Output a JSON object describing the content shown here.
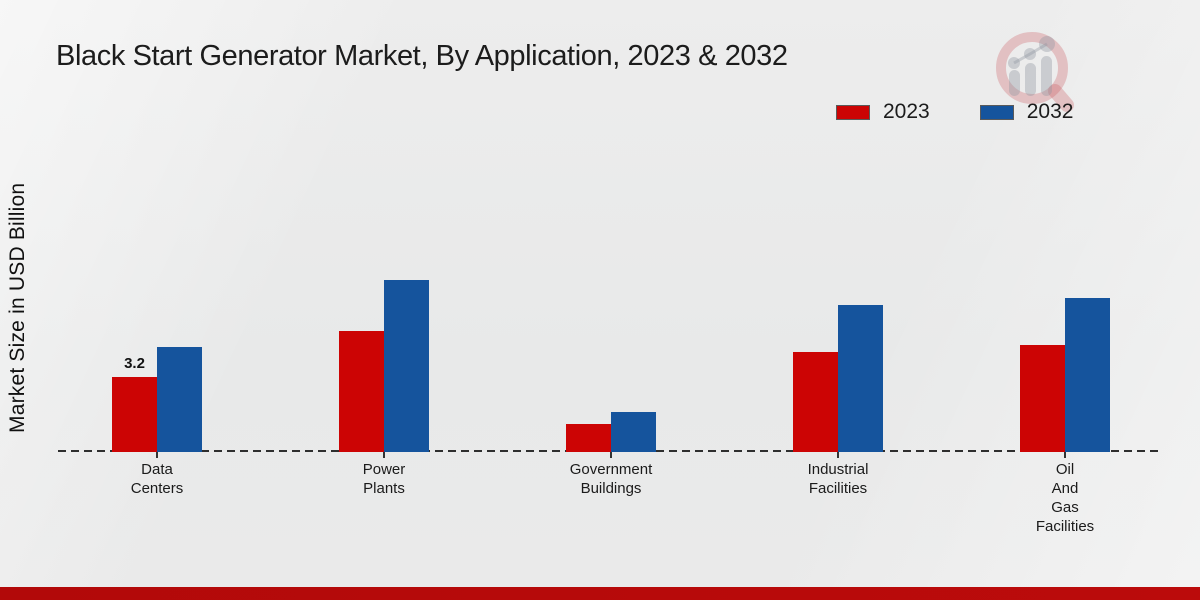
{
  "header": {
    "title": "Black Start Generator Market, By Application, 2023 & 2032"
  },
  "colors": {
    "series_2023": "#cc0404",
    "series_2032": "#15549d",
    "footer_accent": "#b20909",
    "text": "#1a1a1a"
  },
  "watermark": {
    "name": "market-research-magnifier-logo"
  },
  "chart_data": {
    "type": "bar",
    "title": "Black Start Generator Market, By Application, 2023 & 2032",
    "xlabel": "",
    "ylabel": "Market Size in USD Billion",
    "categories": [
      "Data\nCenters",
      "Power\nPlants",
      "Government\nBuildings",
      "Industrial\nFacilities",
      "Oil\nAnd\nGas\nFacilities"
    ],
    "series": [
      {
        "name": "2023",
        "color": "#cc0404",
        "values": [
          3.2,
          5.2,
          1.2,
          4.3,
          4.6
        ]
      },
      {
        "name": "2032",
        "color": "#15549d",
        "values": [
          4.5,
          7.4,
          1.7,
          6.3,
          6.6
        ]
      }
    ],
    "annotations": [
      {
        "category_index": 0,
        "series": "2023",
        "text": "3.2"
      }
    ],
    "ylim": [
      0,
      8
    ],
    "grid": false,
    "y_axis_ticks_visible": false,
    "baseline_style": "dashed",
    "legend_position": "top-right"
  }
}
